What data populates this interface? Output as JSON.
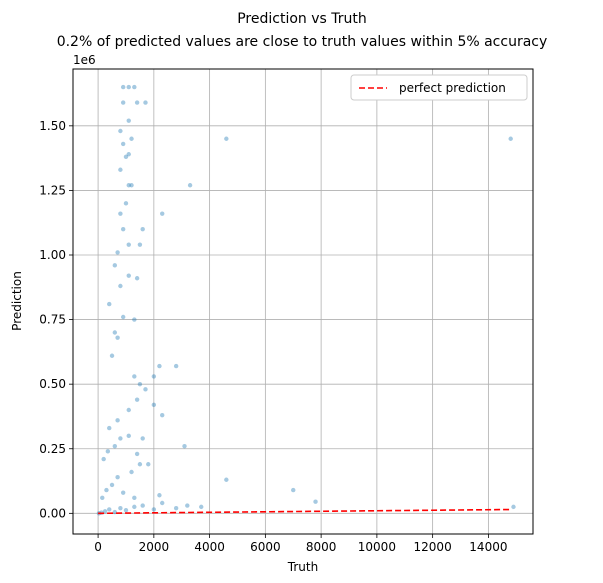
{
  "chart_data": {
    "type": "scatter",
    "title": "Prediction vs Truth",
    "subtitle": "0.2% of predicted values are close to truth values within 5% accuracy",
    "xlabel": "Truth",
    "ylabel": "Prediction",
    "y_offset_text": "1e6",
    "xlim": [
      -900,
      15600
    ],
    "ylim": [
      -80000,
      1720000
    ],
    "grid": true,
    "legend": {
      "position": "top-right",
      "entries": [
        "perfect prediction"
      ]
    },
    "x_ticks": [
      0,
      2000,
      4000,
      6000,
      8000,
      10000,
      12000,
      14000
    ],
    "x_tick_labels": [
      "0",
      "2000",
      "4000",
      "6000",
      "8000",
      "10000",
      "12000",
      "14000"
    ],
    "y_ticks": [
      0,
      250000,
      500000,
      750000,
      1000000,
      1250000,
      1500000
    ],
    "y_tick_labels": [
      "0.00",
      "0.25",
      "0.50",
      "0.75",
      "1.00",
      "1.25",
      "1.50"
    ],
    "series": [
      {
        "kind": "scatter",
        "color": "#1f77b4",
        "alpha": 0.4,
        "points": [
          [
            30,
            0
          ],
          [
            120,
            3000
          ],
          [
            250,
            8000
          ],
          [
            400,
            15000
          ],
          [
            600,
            5000
          ],
          [
            800,
            20000
          ],
          [
            1000,
            12000
          ],
          [
            1300,
            25000
          ],
          [
            1600,
            30000
          ],
          [
            2000,
            15000
          ],
          [
            2300,
            40000
          ],
          [
            2800,
            20000
          ],
          [
            3200,
            30000
          ],
          [
            3700,
            25000
          ],
          [
            4600,
            130000
          ],
          [
            7000,
            90000
          ],
          [
            7800,
            45000
          ],
          [
            14900,
            25000
          ],
          [
            150,
            60000
          ],
          [
            300,
            90000
          ],
          [
            500,
            110000
          ],
          [
            700,
            140000
          ],
          [
            900,
            80000
          ],
          [
            1200,
            160000
          ],
          [
            1500,
            190000
          ],
          [
            1800,
            190000
          ],
          [
            2200,
            70000
          ],
          [
            1300,
            60000
          ],
          [
            200,
            210000
          ],
          [
            350,
            240000
          ],
          [
            600,
            260000
          ],
          [
            800,
            290000
          ],
          [
            1100,
            300000
          ],
          [
            1600,
            290000
          ],
          [
            2300,
            380000
          ],
          [
            3100,
            260000
          ],
          [
            1400,
            230000
          ],
          [
            400,
            330000
          ],
          [
            700,
            360000
          ],
          [
            1100,
            400000
          ],
          [
            1400,
            440000
          ],
          [
            2000,
            420000
          ],
          [
            1500,
            500000
          ],
          [
            2000,
            530000
          ],
          [
            2200,
            570000
          ],
          [
            2800,
            570000
          ],
          [
            1300,
            530000
          ],
          [
            1700,
            480000
          ],
          [
            500,
            610000
          ],
          [
            700,
            680000
          ],
          [
            600,
            700000
          ],
          [
            900,
            760000
          ],
          [
            1300,
            750000
          ],
          [
            400,
            810000
          ],
          [
            800,
            880000
          ],
          [
            1100,
            920000
          ],
          [
            1400,
            910000
          ],
          [
            600,
            960000
          ],
          [
            700,
            1010000
          ],
          [
            1100,
            1040000
          ],
          [
            1500,
            1040000
          ],
          [
            1600,
            1100000
          ],
          [
            900,
            1100000
          ],
          [
            800,
            1160000
          ],
          [
            1000,
            1200000
          ],
          [
            2300,
            1160000
          ],
          [
            1200,
            1270000
          ],
          [
            1100,
            1270000
          ],
          [
            3300,
            1270000
          ],
          [
            800,
            1330000
          ],
          [
            1000,
            1380000
          ],
          [
            1100,
            1390000
          ],
          [
            900,
            1430000
          ],
          [
            1200,
            1450000
          ],
          [
            4600,
            1450000
          ],
          [
            14800,
            1450000
          ],
          [
            800,
            1480000
          ],
          [
            1100,
            1520000
          ],
          [
            900,
            1590000
          ],
          [
            1400,
            1590000
          ],
          [
            1700,
            1590000
          ],
          [
            900,
            1650000
          ],
          [
            1100,
            1650000
          ],
          [
            1300,
            1650000
          ]
        ]
      },
      {
        "kind": "line",
        "name": "perfect prediction",
        "color": "#ff0000",
        "dash": "dashed",
        "x": [
          0,
          14850
        ],
        "y": [
          0,
          14850
        ]
      }
    ]
  }
}
